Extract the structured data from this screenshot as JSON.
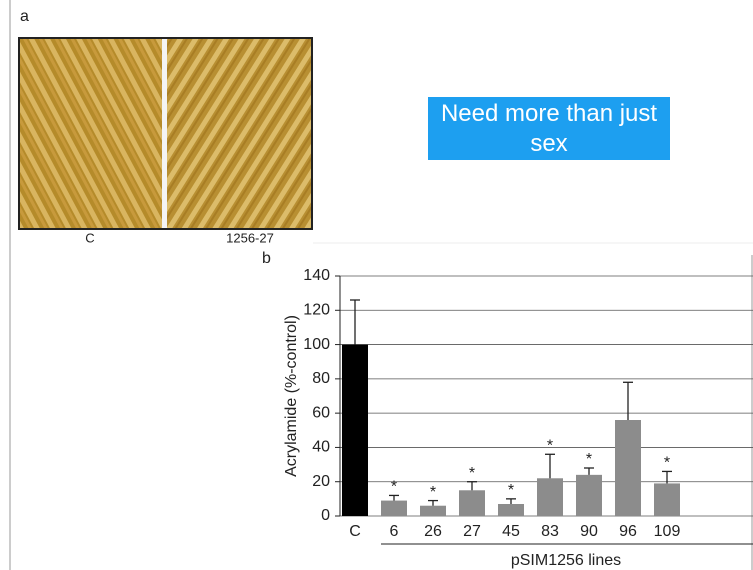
{
  "panel_a": {
    "label": "a",
    "left_caption": "C",
    "right_caption": "1256-27"
  },
  "callout": "Need more than just sex",
  "chart_data": {
    "type": "bar",
    "panel_label": "b",
    "ylabel": "Acrylamide (%-control)",
    "xlabel": "pSIM1256 lines",
    "categories": [
      "C",
      "6",
      "26",
      "27",
      "45",
      "83",
      "90",
      "96",
      "109"
    ],
    "values": [
      100,
      9,
      6,
      15,
      7,
      22,
      24,
      56,
      19
    ],
    "errors": [
      26,
      3,
      3,
      5,
      3,
      14,
      4,
      22,
      7
    ],
    "colors": [
      "#000000",
      "#8c8c8c",
      "#8c8c8c",
      "#8c8c8c",
      "#8c8c8c",
      "#8c8c8c",
      "#8c8c8c",
      "#8c8c8c",
      "#8c8c8c"
    ],
    "annotations": [
      {
        "category": "6",
        "text": "*"
      },
      {
        "category": "26",
        "text": "*"
      },
      {
        "category": "27",
        "text": "*"
      },
      {
        "category": "45",
        "text": "*"
      },
      {
        "category": "83",
        "text": "*"
      },
      {
        "category": "90",
        "text": "*"
      },
      {
        "category": "109",
        "text": "*"
      }
    ],
    "ylim": [
      0,
      140
    ],
    "yticks": [
      0,
      20,
      40,
      60,
      80,
      100,
      120,
      140
    ],
    "grid": true
  }
}
